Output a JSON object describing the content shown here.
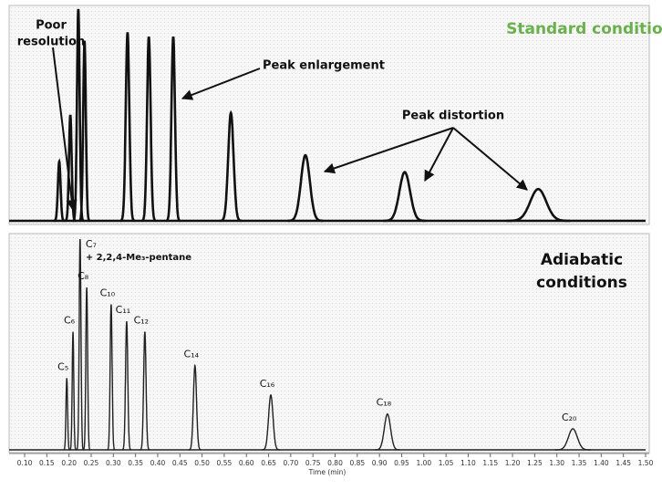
{
  "chart_data": [
    {
      "type": "chromatogram",
      "title": [
        "Standard conditions"
      ],
      "title_color": "#6ab04c",
      "annotations": [
        {
          "text": [
            "Poor",
            "resolution"
          ]
        },
        {
          "text": [
            "Peak enlargement"
          ]
        },
        {
          "text": [
            "Peak distortion"
          ]
        }
      ],
      "xlim": [
        0.065,
        1.5
      ],
      "ylim": [
        0,
        100
      ],
      "color": "#111111",
      "peaks": [
        {
          "x": 0.178,
          "height": 28,
          "width": 0.003
        },
        {
          "x": 0.203,
          "height": 50,
          "width": 0.003
        },
        {
          "x": 0.221,
          "height": 100,
          "width": 0.003
        },
        {
          "x": 0.235,
          "height": 85,
          "width": 0.003
        },
        {
          "x": 0.332,
          "height": 89,
          "width": 0.004
        },
        {
          "x": 0.38,
          "height": 87,
          "width": 0.004
        },
        {
          "x": 0.435,
          "height": 87,
          "width": 0.004
        },
        {
          "x": 0.565,
          "height": 51,
          "width": 0.006
        },
        {
          "x": 0.733,
          "height": 31,
          "width": 0.01
        },
        {
          "x": 0.957,
          "height": 23,
          "width": 0.012
        },
        {
          "x": 1.258,
          "height": 15,
          "width": 0.018
        }
      ]
    },
    {
      "type": "chromatogram",
      "title": [
        "Adiabatic",
        "conditions"
      ],
      "title_color": "#111111",
      "xlim": [
        0.065,
        1.5
      ],
      "ylim": [
        0,
        100
      ],
      "color": "#222222",
      "xlabel": "Time (min)",
      "xticks": [
        {
          "value": 0.1,
          "label": "0.10"
        },
        {
          "value": 0.15,
          "label": "0.15"
        },
        {
          "value": 0.2,
          "label": "0.20"
        },
        {
          "value": 0.25,
          "label": "0.25"
        },
        {
          "value": 0.3,
          "label": "0.30"
        },
        {
          "value": 0.35,
          "label": "0.35"
        },
        {
          "value": 0.4,
          "label": "0.40"
        },
        {
          "value": 0.45,
          "label": "0.45"
        },
        {
          "value": 0.5,
          "label": "0.50"
        },
        {
          "value": 0.55,
          "label": "0.55"
        },
        {
          "value": 0.6,
          "label": "0.60"
        },
        {
          "value": 0.65,
          "label": "0.65"
        },
        {
          "value": 0.7,
          "label": "0.70"
        },
        {
          "value": 0.75,
          "label": "0.75"
        },
        {
          "value": 0.8,
          "label": "0.80"
        },
        {
          "value": 0.85,
          "label": "0.85"
        },
        {
          "value": 0.9,
          "label": "0.90"
        },
        {
          "value": 0.95,
          "label": "0.95"
        },
        {
          "value": 1.0,
          "label": "1.00"
        },
        {
          "value": 1.05,
          "label": "1.05"
        },
        {
          "value": 1.1,
          "label": "1.10"
        },
        {
          "value": 1.15,
          "label": "1.15"
        },
        {
          "value": 1.2,
          "label": "1.20"
        },
        {
          "value": 1.25,
          "label": "1.25"
        },
        {
          "value": 1.3,
          "label": "1.30"
        },
        {
          "value": 1.35,
          "label": "1.35"
        },
        {
          "value": 1.4,
          "label": "1.40"
        },
        {
          "value": 1.45,
          "label": "1.45"
        },
        {
          "value": 1.5,
          "label": "1.50"
        }
      ],
      "peaks": [
        {
          "label": [
            "C₅"
          ],
          "x": 0.195,
          "height": 34,
          "width": 0.0018
        },
        {
          "label": [
            "C₆"
          ],
          "x": 0.209,
          "height": 56,
          "width": 0.0018
        },
        {
          "label": [
            "C₇",
            "+ 2,2,4-Me₃-pentane"
          ],
          "x": 0.225,
          "height": 100,
          "width": 0.002
        },
        {
          "label": [
            "C₈"
          ],
          "x": 0.24,
          "height": 77,
          "width": 0.002
        },
        {
          "label": [
            "C₁₀"
          ],
          "x": 0.295,
          "height": 69,
          "width": 0.0022
        },
        {
          "label": [
            "C₁₁"
          ],
          "x": 0.33,
          "height": 61,
          "width": 0.0025
        },
        {
          "label": [
            "C₁₂"
          ],
          "x": 0.371,
          "height": 56,
          "width": 0.0027
        },
        {
          "label": [
            "C₁₄"
          ],
          "x": 0.484,
          "height": 40,
          "width": 0.0035
        },
        {
          "label": [
            "C₁₆"
          ],
          "x": 0.655,
          "height": 26,
          "width": 0.005
        },
        {
          "label": [
            "C₁₈"
          ],
          "x": 0.918,
          "height": 17,
          "width": 0.007
        },
        {
          "label": [
            "C₂₀"
          ],
          "x": 1.336,
          "height": 10,
          "width": 0.01
        }
      ]
    }
  ]
}
